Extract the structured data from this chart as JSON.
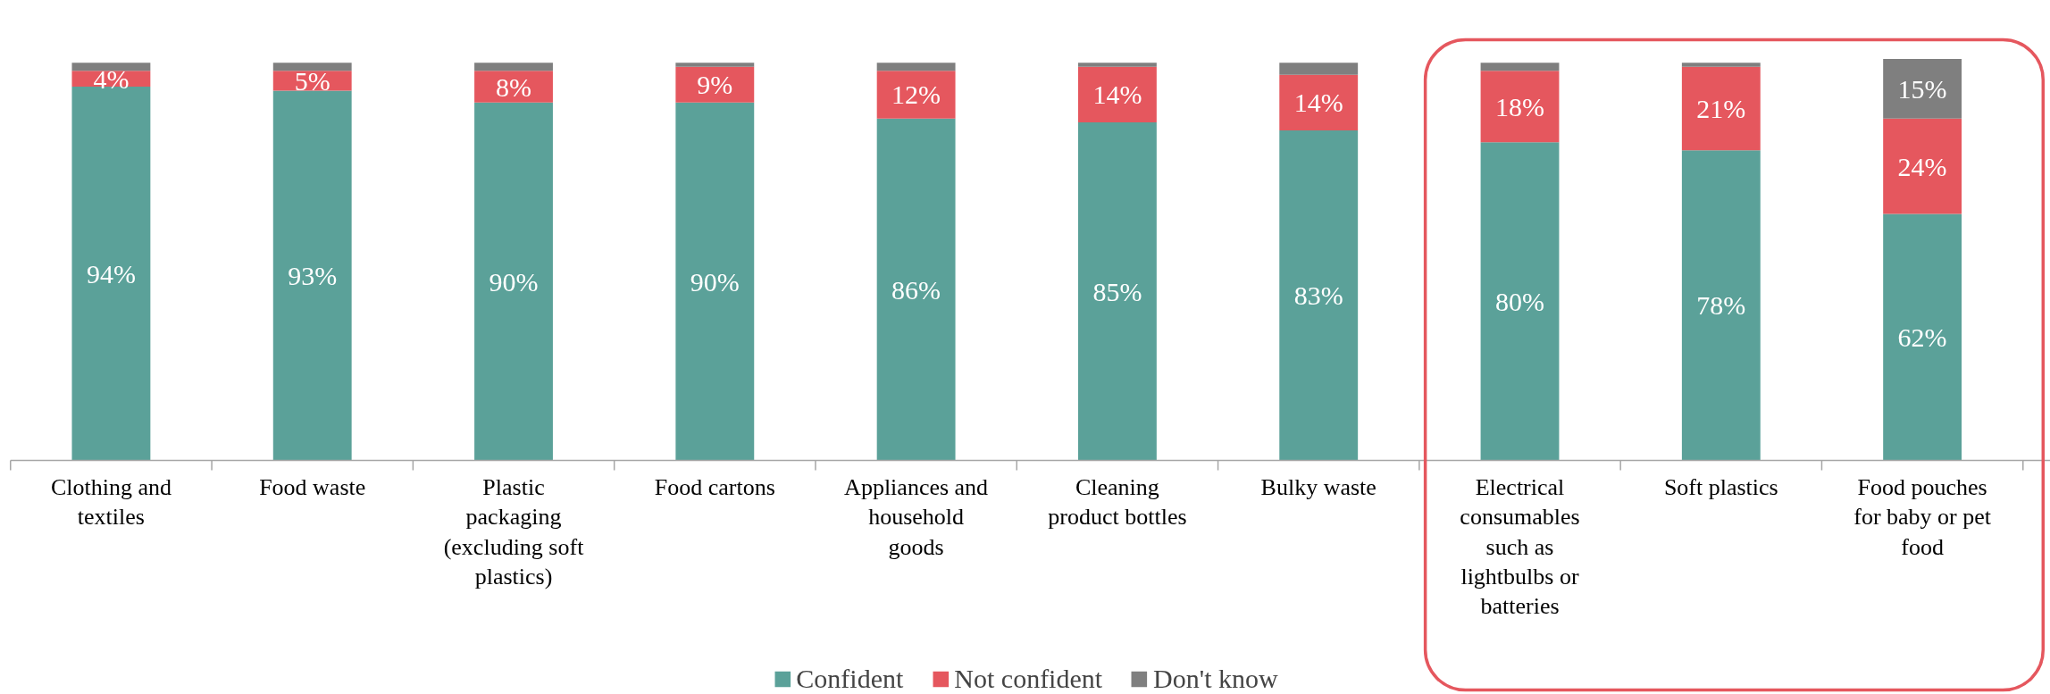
{
  "chart_data": {
    "type": "bar",
    "stacked": true,
    "legend": "bottom",
    "categories": [
      "Clothing and\ntextiles",
      "Food waste",
      "Plastic\npackaging\n(excluding soft\nplastics)",
      "Food cartons",
      "Appliances and\nhousehold\ngoods",
      "Cleaning\nproduct bottles",
      "Bulky waste",
      "Electrical\nconsumables\nsuch as\nlightbulbs or\nbatteries",
      "Soft plastics",
      "Food pouches\nfor baby or pet\nfood"
    ],
    "series": [
      {
        "name": "Confident",
        "color": "#5ba199",
        "values": [
          94,
          93,
          90,
          90,
          86,
          85,
          83,
          80,
          78,
          62
        ],
        "value_labels": [
          "94%",
          "93%",
          "90%",
          "90%",
          "86%",
          "85%",
          "83%",
          "80%",
          "78%",
          "62%"
        ]
      },
      {
        "name": "Not confident",
        "color": "#e5575e",
        "values": [
          4,
          5,
          8,
          9,
          12,
          14,
          14,
          18,
          21,
          24
        ],
        "value_labels": [
          "4%",
          "5%",
          "8%",
          "9%",
          "12%",
          "14%",
          "14%",
          "18%",
          "21%",
          "24%"
        ]
      },
      {
        "name": "Don't know",
        "color": "#7f7f7f",
        "values": [
          2,
          2,
          2,
          1,
          2,
          1,
          3,
          2,
          1,
          15
        ],
        "value_labels": [
          null,
          null,
          null,
          null,
          null,
          null,
          null,
          null,
          null,
          "15%"
        ]
      }
    ]
  }
}
